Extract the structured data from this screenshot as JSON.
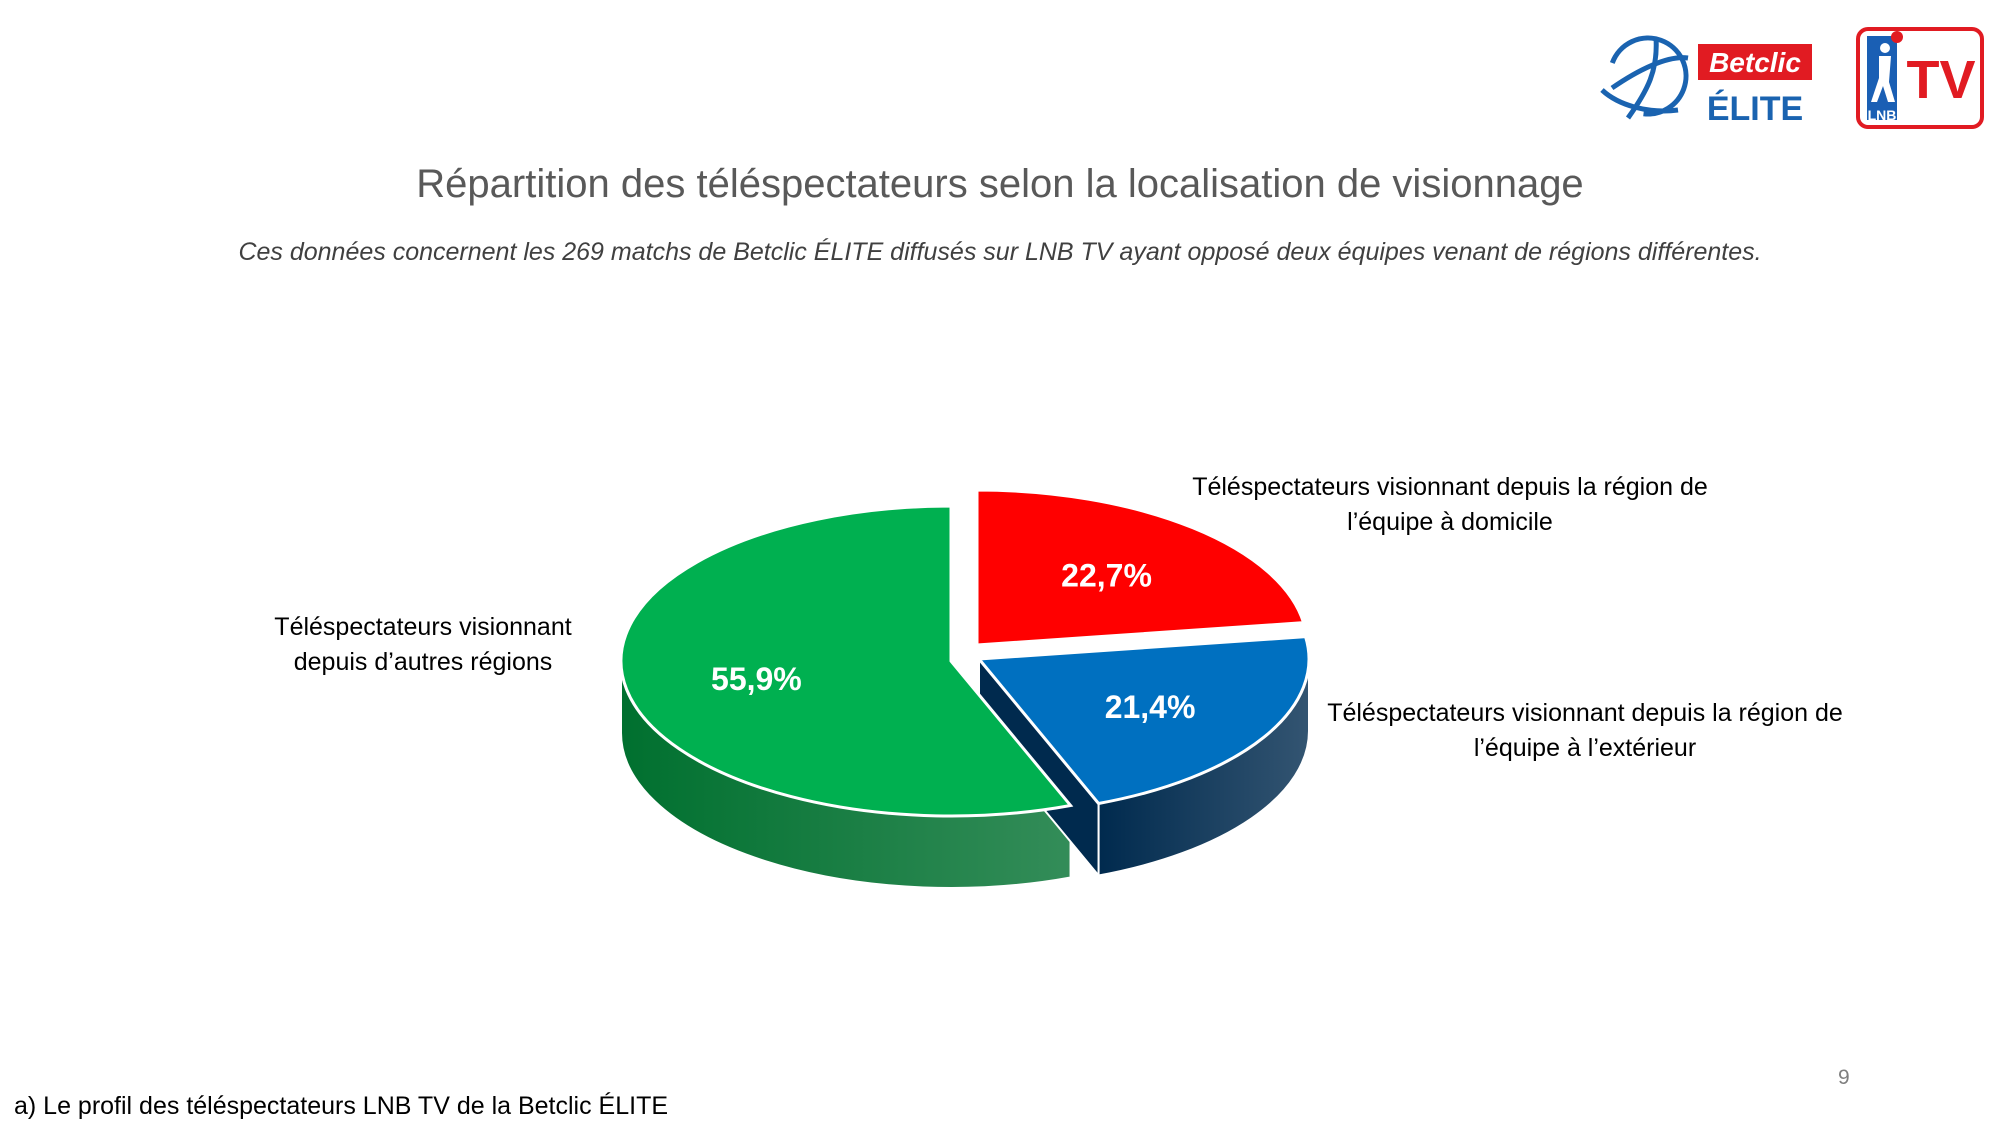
{
  "header": {
    "title": "Répartition des téléspectateurs selon la localisation de visionnage",
    "subtitle": "Ces données concernent les 269 matchs de Betclic ÉLITE diffusés sur LNB TV ayant opposé deux équipes venant de régions différentes."
  },
  "logos": {
    "betclic_elite": {
      "top": "Betclic",
      "bottom": "ÉLITE",
      "icon": "basketball-icon"
    },
    "lnb_tv": {
      "left": "LNB",
      "right": "TV",
      "icon": "player-silhouette-icon"
    }
  },
  "chart_data": {
    "type": "pie",
    "style": "3d-exploded",
    "slices": [
      {
        "label": "Téléspectateurs visionnant depuis la région de l’équipe à domicile",
        "value": 22.7,
        "value_label": "22,7%",
        "color": "#ff0000",
        "side_color": "#b00000"
      },
      {
        "label": "Téléspectateurs visionnant depuis la région de l’équipe à l’extérieur",
        "value": 21.4,
        "value_label": "21,4%",
        "color": "#0070c0",
        "side_color": "#002a4e"
      },
      {
        "label": "Téléspectateurs visionnant depuis d’autres régions",
        "value": 55.9,
        "value_label": "55,9%",
        "color": "#00b050",
        "side_color": "#00702f"
      }
    ]
  },
  "labels": {
    "home": [
      "Téléspectateurs visionnant depuis la région de",
      "l’équipe à domicile"
    ],
    "away": [
      "Téléspectateurs visionnant depuis la région de",
      "l’équipe à l’extérieur"
    ],
    "other": [
      "Téléspectateurs visionnant",
      "depuis d’autres régions"
    ]
  },
  "footer": {
    "text": "a) Le profil des téléspectateurs LNB TV de la Betclic ÉLITE",
    "page_number": "9"
  }
}
